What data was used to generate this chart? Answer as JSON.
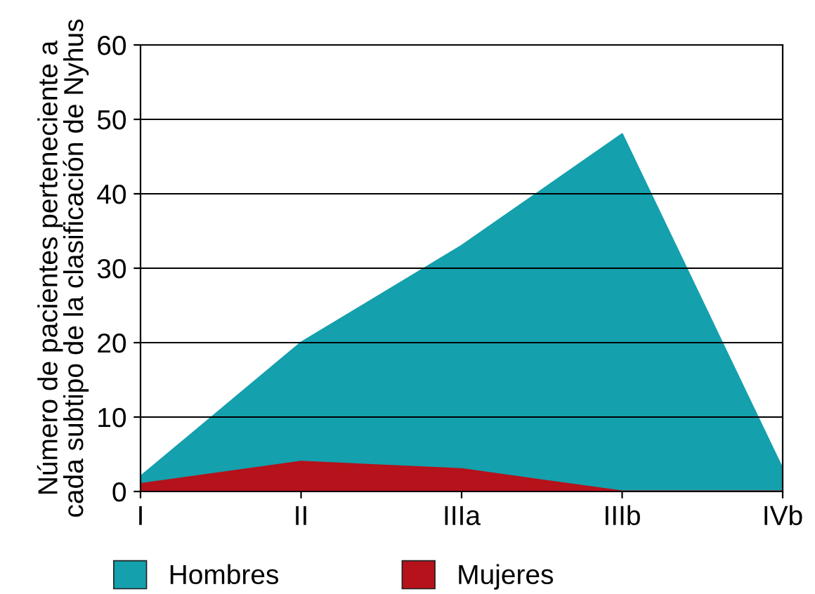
{
  "chart_data": {
    "type": "area",
    "ylabel": "Número de pacientes perteneciente a\ncada subtipo de la clasificación de Nyhus",
    "categories": [
      "I",
      "II",
      "IIIa",
      "IIIb",
      "IVb"
    ],
    "series": [
      {
        "name": "Hombres",
        "color": "#14a0ad",
        "values": [
          2,
          20,
          33,
          48,
          3
        ]
      },
      {
        "name": "Mujeres",
        "color": "#b5121b",
        "values": [
          1,
          4,
          3,
          0,
          0
        ]
      }
    ],
    "ylim": [
      0,
      60
    ],
    "yticks": [
      0,
      10,
      20,
      30,
      40,
      50,
      60
    ],
    "grid": "y",
    "legend": "bottom"
  }
}
